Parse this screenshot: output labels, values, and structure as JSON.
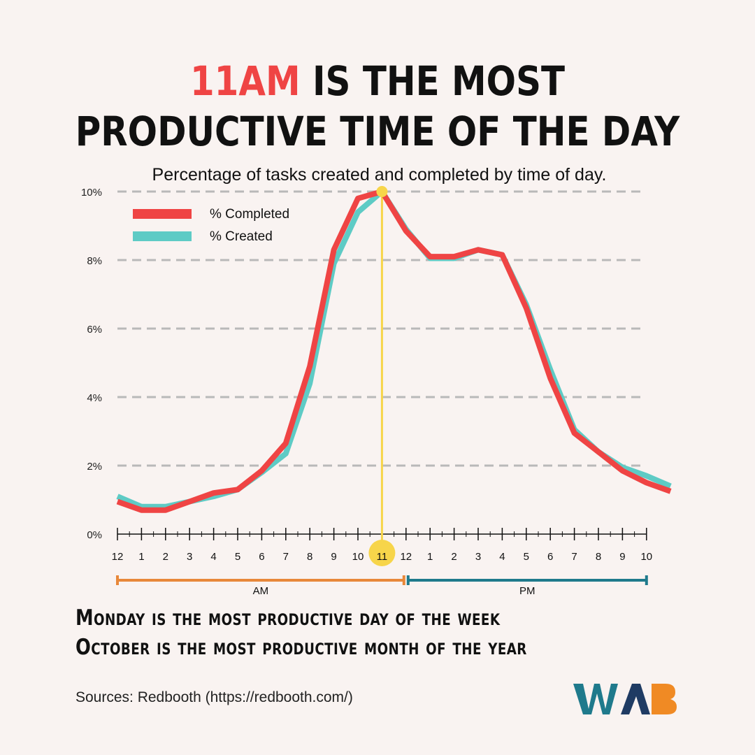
{
  "headline": {
    "highlight": "11AM",
    "line1_rest": " IS THE MOST",
    "line2": "PRODUCTIVE TIME OF THE DAY"
  },
  "colors": {
    "completed": "#ef4444",
    "created": "#5ecbc5",
    "highlight": "#f7d54a",
    "am": "#e8883a",
    "pm": "#1f7a8c",
    "grid": "#b9b9b9",
    "logo_teal": "#1f7a8c",
    "logo_navy": "#1f3b63",
    "logo_orange": "#f08a24"
  },
  "chart_data": {
    "type": "line",
    "title": "Percentage of tasks created and completed by time of day.",
    "xlabel": "",
    "ylabel": "",
    "ylim": [
      0,
      10
    ],
    "yticks": [
      "0%",
      "2%",
      "4%",
      "6%",
      "8%",
      "10%"
    ],
    "xtick_labels": [
      "12",
      "1",
      "2",
      "3",
      "4",
      "5",
      "6",
      "7",
      "8",
      "9",
      "10",
      "11",
      "12",
      "1",
      "2",
      "3",
      "4",
      "5",
      "6",
      "7",
      "8",
      "9",
      "10"
    ],
    "highlight_hour_label": "11",
    "grid": "horizontal dashed",
    "legend_position": "top-left",
    "periods": [
      {
        "label": "AM",
        "from": 0,
        "to": 12
      },
      {
        "label": "PM",
        "from": 12,
        "to": 22
      }
    ],
    "series": [
      {
        "name": "% Completed",
        "x": [
          0,
          1,
          2,
          3,
          4,
          5,
          6,
          7,
          8,
          9,
          10,
          11,
          12,
          13,
          14,
          15,
          16,
          17,
          18,
          19,
          20,
          21,
          22,
          23
        ],
        "values": [
          0.95,
          0.7,
          0.7,
          0.95,
          1.2,
          1.3,
          1.85,
          2.65,
          4.9,
          8.3,
          9.8,
          10.0,
          8.85,
          8.1,
          8.1,
          8.3,
          8.15,
          6.6,
          4.55,
          2.95,
          2.4,
          1.85,
          1.5,
          1.25
        ]
      },
      {
        "name": "% Created",
        "x": [
          0,
          1,
          2,
          3,
          4,
          5,
          6,
          7,
          8,
          9,
          10,
          11,
          12,
          13,
          14,
          15,
          16,
          17,
          18,
          19,
          20,
          21,
          22,
          23
        ],
        "values": [
          1.1,
          0.8,
          0.8,
          0.95,
          1.1,
          1.3,
          1.8,
          2.35,
          4.4,
          7.9,
          9.4,
          10.0,
          8.9,
          8.05,
          8.05,
          8.3,
          8.15,
          6.7,
          4.8,
          3.05,
          2.4,
          1.95,
          1.7,
          1.4
        ]
      }
    ]
  },
  "facts": {
    "line1": "Monday is the most productive day of the week",
    "line2": "October is the most productive month of the year"
  },
  "source": "Sources: Redbooth (https://redbooth.com/)",
  "logo": {
    "text": "WAB"
  }
}
